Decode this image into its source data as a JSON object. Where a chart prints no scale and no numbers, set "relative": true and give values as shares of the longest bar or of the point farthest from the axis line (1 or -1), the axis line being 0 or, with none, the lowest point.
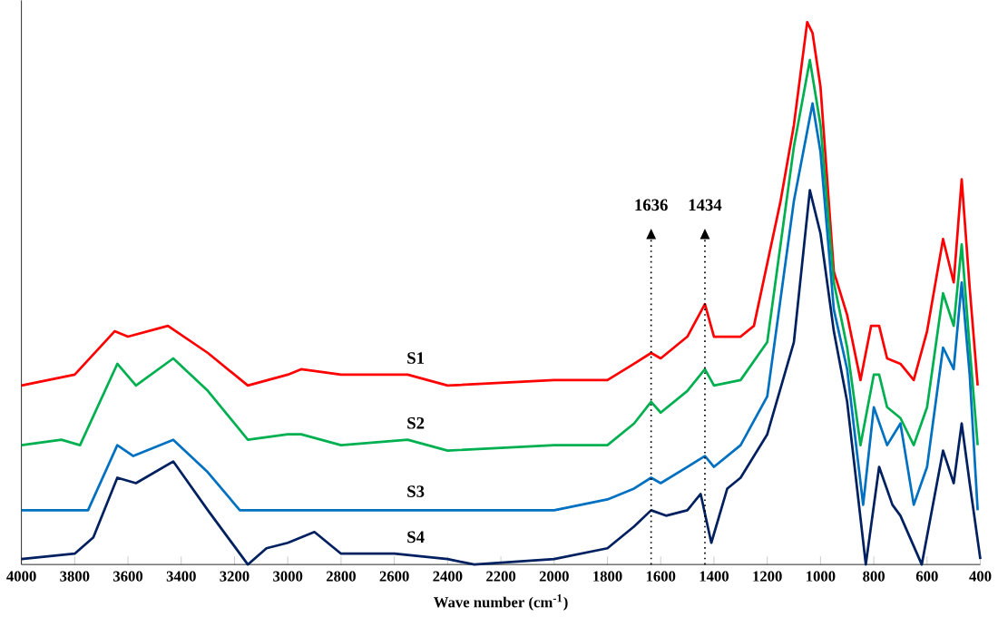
{
  "chart_data": {
    "type": "line",
    "relative": true,
    "xlabel": "Wave number (cm$^{-1}$)",
    "xlim": [
      4000,
      400
    ],
    "xticks": [
      4000,
      3800,
      3600,
      3400,
      3200,
      3000,
      2800,
      2600,
      2400,
      2200,
      2000,
      1800,
      1600,
      1400,
      1200,
      1000,
      800,
      600,
      400
    ],
    "grid": false,
    "marker": "none",
    "line_style": "solid",
    "ref_lines": [
      {
        "axis": "x",
        "value": 1636,
        "label": "1636",
        "line_style": "dotted"
      },
      {
        "axis": "x",
        "value": 1434,
        "label": "1434",
        "line_style": "dotted"
      }
    ],
    "series": [
      {
        "name": "S1",
        "color": "#ff0000",
        "x": [
          4000,
          3800,
          3650,
          3600,
          3450,
          3300,
          3150,
          3000,
          2950,
          2800,
          2550,
          2400,
          2000,
          1800,
          1700,
          1636,
          1600,
          1500,
          1434,
          1400,
          1300,
          1250,
          1150,
          1100,
          1050,
          1030,
          1000,
          950,
          900,
          850,
          810,
          780,
          750,
          700,
          650,
          600,
          540,
          500,
          470,
          440,
          410
        ],
        "values": [
          0.33,
          0.35,
          0.43,
          0.42,
          0.44,
          0.39,
          0.33,
          0.35,
          0.36,
          0.35,
          0.35,
          0.33,
          0.34,
          0.34,
          0.37,
          0.39,
          0.38,
          0.42,
          0.48,
          0.42,
          0.42,
          0.44,
          0.67,
          0.81,
          1.0,
          0.98,
          0.88,
          0.54,
          0.46,
          0.34,
          0.44,
          0.44,
          0.38,
          0.37,
          0.34,
          0.43,
          0.6,
          0.52,
          0.71,
          0.51,
          0.33
        ]
      },
      {
        "name": "S2",
        "color": "#00b050",
        "x": [
          4000,
          3850,
          3780,
          3640,
          3570,
          3430,
          3300,
          3150,
          3000,
          2950,
          2800,
          2550,
          2400,
          2000,
          1800,
          1700,
          1636,
          1600,
          1500,
          1434,
          1400,
          1300,
          1200,
          1100,
          1040,
          1000,
          950,
          900,
          850,
          800,
          780,
          750,
          700,
          650,
          600,
          540,
          500,
          470,
          440,
          410
        ],
        "values": [
          0.22,
          0.23,
          0.22,
          0.37,
          0.33,
          0.38,
          0.32,
          0.23,
          0.24,
          0.24,
          0.22,
          0.23,
          0.21,
          0.22,
          0.22,
          0.26,
          0.3,
          0.28,
          0.32,
          0.36,
          0.33,
          0.34,
          0.41,
          0.77,
          0.93,
          0.81,
          0.52,
          0.4,
          0.22,
          0.35,
          0.35,
          0.29,
          0.27,
          0.22,
          0.29,
          0.5,
          0.44,
          0.59,
          0.4,
          0.22
        ]
      },
      {
        "name": "S3",
        "color": "#0070c0",
        "x": [
          4000,
          3750,
          3640,
          3580,
          3430,
          3300,
          3180,
          2900,
          2000,
          1800,
          1700,
          1636,
          1600,
          1500,
          1434,
          1400,
          1300,
          1200,
          1100,
          1030,
          1000,
          950,
          900,
          840,
          800,
          750,
          700,
          650,
          600,
          540,
          500,
          470,
          440,
          410
        ],
        "values": [
          0.1,
          0.1,
          0.22,
          0.2,
          0.23,
          0.17,
          0.1,
          0.1,
          0.1,
          0.12,
          0.14,
          0.16,
          0.15,
          0.18,
          0.2,
          0.18,
          0.22,
          0.31,
          0.67,
          0.85,
          0.76,
          0.47,
          0.36,
          0.11,
          0.29,
          0.22,
          0.26,
          0.11,
          0.18,
          0.4,
          0.36,
          0.52,
          0.35,
          0.1
        ]
      },
      {
        "name": "S4",
        "color": "#002060",
        "x": [
          4000,
          3800,
          3730,
          3640,
          3570,
          3430,
          3300,
          3150,
          3080,
          3000,
          2900,
          2800,
          2600,
          2400,
          2300,
          2000,
          1800,
          1700,
          1636,
          1580,
          1500,
          1450,
          1410,
          1350,
          1300,
          1200,
          1100,
          1040,
          1000,
          950,
          900,
          830,
          780,
          730,
          700,
          620,
          540,
          500,
          470,
          440,
          400
        ],
        "values": [
          0.01,
          0.02,
          0.05,
          0.16,
          0.15,
          0.19,
          0.1,
          0,
          0.03,
          0.04,
          0.06,
          0.02,
          0.02,
          0.01,
          0,
          0.01,
          0.03,
          0.07,
          0.1,
          0.09,
          0.1,
          0.13,
          0.04,
          0.14,
          0.16,
          0.24,
          0.41,
          0.69,
          0.61,
          0.43,
          0.3,
          0,
          0.18,
          0.11,
          0.09,
          0,
          0.21,
          0.15,
          0.26,
          0.15,
          0.01
        ]
      }
    ]
  }
}
